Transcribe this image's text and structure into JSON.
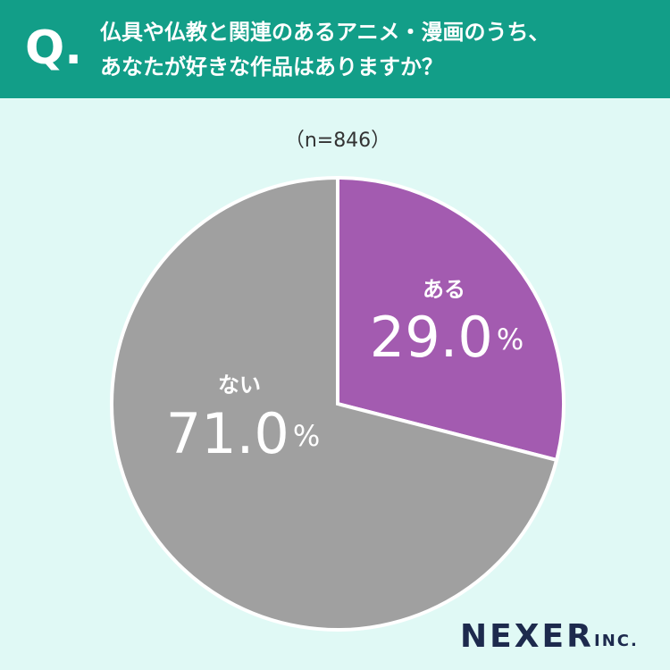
{
  "chart_data": {
    "type": "pie",
    "question_mark": "Q.",
    "title": [
      "仏具や仏教と関連のあるアニメ・漫画のうち、",
      "あなたが好きな作品はありますか？"
    ],
    "subtitle": "（n=846）",
    "categories": [
      "ある",
      "ない"
    ],
    "values": [
      29.0,
      71.0
    ],
    "value_labels": [
      "29.0%",
      "71.0%"
    ],
    "colors": [
      "#a35bb0",
      "#a0a0a0"
    ]
  },
  "brand": {
    "name": "NEXER",
    "suffix": "INC."
  }
}
